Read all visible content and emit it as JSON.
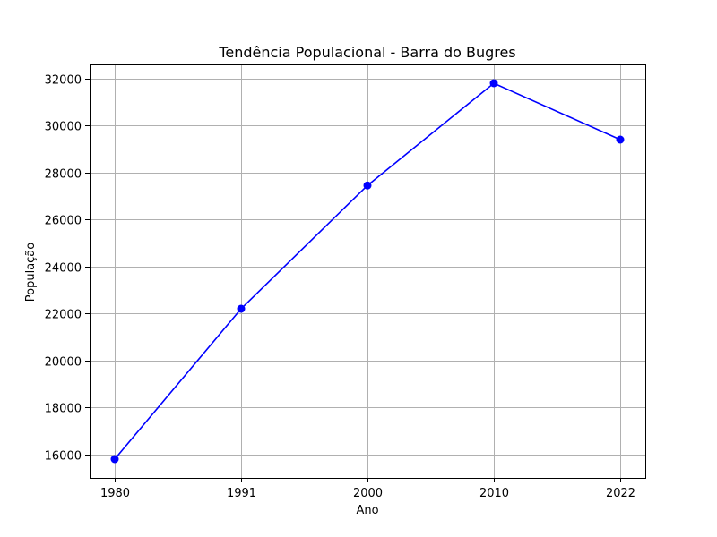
{
  "chart_data": {
    "type": "line",
    "title": "Tendência Populacional - Barra do Bugres",
    "xlabel": "Ano",
    "ylabel": "População",
    "categories": [
      "1980",
      "1991",
      "2000",
      "2010",
      "2022"
    ],
    "series": [
      {
        "values": [
          15800,
          22200,
          27450,
          31800,
          29400
        ],
        "color": "#0000ff",
        "marker": "circle"
      }
    ],
    "ylim": [
      15000,
      32600
    ],
    "yticks": [
      16000,
      18000,
      20000,
      22000,
      24000,
      26000,
      28000,
      30000,
      32000
    ],
    "ytick_labels": [
      "16000",
      "18000",
      "20000",
      "22000",
      "24000",
      "26000",
      "28000",
      "30000",
      "32000"
    ],
    "grid": true,
    "colors": {
      "grid": "#b0b0b0",
      "axes": "#000000",
      "background": "#ffffff"
    }
  }
}
